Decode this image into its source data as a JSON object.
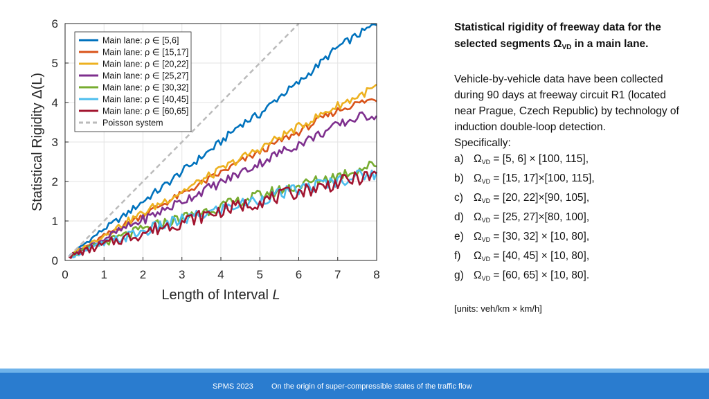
{
  "chart_data": {
    "type": "line",
    "title": "",
    "xlabel": "Length of Interval",
    "xlabel_var": "L",
    "ylabel": "Statistical Rigidity Δ(L)",
    "xlim": [
      0,
      8
    ],
    "ylim": [
      0,
      6
    ],
    "xticks": [
      0,
      1,
      2,
      3,
      4,
      5,
      6,
      7,
      8
    ],
    "yticks": [
      0,
      1,
      2,
      3,
      4,
      5,
      6
    ],
    "grid": true,
    "legend_position": "top-left",
    "x": [
      0.1,
      0.5,
      1,
      1.5,
      2,
      2.5,
      3,
      3.5,
      4,
      4.5,
      5,
      5.5,
      6,
      6.5,
      7,
      7.5,
      8
    ],
    "series": [
      {
        "name": "Main lane: ρ ∈ [5,6]",
        "color": "#0072BD",
        "style": "solid",
        "values": [
          0.1,
          0.42,
          0.8,
          1.12,
          1.5,
          1.85,
          2.25,
          2.62,
          3.0,
          3.45,
          3.7,
          4.15,
          4.5,
          4.95,
          5.4,
          5.7,
          6.0
        ]
      },
      {
        "name": "Main lane: ρ ∈ [15,17]",
        "color": "#D95319",
        "style": "solid",
        "values": [
          0.1,
          0.33,
          0.62,
          0.9,
          1.15,
          1.42,
          1.68,
          1.95,
          2.22,
          2.5,
          2.75,
          3.02,
          3.25,
          3.55,
          3.8,
          3.98,
          4.1
        ]
      },
      {
        "name": "Main lane: ρ ∈ [20,22]",
        "color": "#EDB120",
        "style": "solid",
        "values": [
          0.1,
          0.34,
          0.64,
          0.93,
          1.2,
          1.48,
          1.75,
          2.02,
          2.3,
          2.58,
          2.83,
          3.12,
          3.38,
          3.65,
          3.92,
          4.15,
          4.4
        ]
      },
      {
        "name": "Main lane: ρ ∈ [25,27]",
        "color": "#7E2F8E",
        "style": "solid",
        "values": [
          0.1,
          0.3,
          0.55,
          0.8,
          1.03,
          1.26,
          1.5,
          1.75,
          1.97,
          2.22,
          2.47,
          2.72,
          2.95,
          3.18,
          3.42,
          3.62,
          3.7
        ]
      },
      {
        "name": "Main lane: ρ ∈ [30,32]",
        "color": "#77AC30",
        "style": "solid",
        "values": [
          0.1,
          0.25,
          0.45,
          0.62,
          0.78,
          0.93,
          1.08,
          1.22,
          1.37,
          1.5,
          1.65,
          1.78,
          1.9,
          2.03,
          2.15,
          2.3,
          2.45
        ]
      },
      {
        "name": "Main lane: ρ ∈ [40,45]",
        "color": "#4DBEEE",
        "style": "solid",
        "values": [
          0.1,
          0.24,
          0.42,
          0.58,
          0.73,
          0.88,
          1.02,
          1.15,
          1.3,
          1.42,
          1.55,
          1.68,
          1.8,
          1.92,
          2.02,
          2.15,
          2.2
        ]
      },
      {
        "name": "Main lane: ρ ∈ [60,65]",
        "color": "#A2142F",
        "style": "solid",
        "values": [
          0.1,
          0.23,
          0.4,
          0.56,
          0.7,
          0.85,
          0.98,
          1.12,
          1.26,
          1.38,
          1.5,
          1.62,
          1.75,
          1.85,
          1.96,
          2.08,
          2.15
        ]
      },
      {
        "name": "Poisson system",
        "color": "#BBBBBB",
        "style": "dashed",
        "values": [
          0.1,
          0.5,
          1.0,
          1.5,
          2.0,
          2.5,
          3.0,
          3.5,
          4.0,
          4.5,
          5.0,
          5.5,
          6.0,
          null,
          null,
          null,
          null
        ]
      }
    ]
  },
  "side": {
    "title_pre": "Statistical rigidity of freeway data for the selected segments Ω",
    "title_sub": "VD",
    "title_post": " in a main lane.",
    "para": "Vehicle-by-vehicle data have been collected during 90 days at freeway circuit R1 (located near Prague, Czech Republic) by technology of induction double-loop detection.",
    "specifically": "Specifically:",
    "items": [
      {
        "letter": "a)",
        "omega": "Ω",
        "sub": "VD",
        "text": " = [5, 6] × [100, 115],"
      },
      {
        "letter": "b)",
        "omega": "Ω",
        "sub": "VD",
        "text": " = [15, 17]×[100, 115],"
      },
      {
        "letter": "c)",
        "omega": "Ω",
        "sub": "VD",
        "text": " = [20, 22]×[90, 105],"
      },
      {
        "letter": "d)",
        "omega": "Ω",
        "sub": "VD",
        "text": " = [25, 27]×[80, 100],"
      },
      {
        "letter": "e)",
        "omega": "Ω",
        "sub": "VD",
        "text": " = [30, 32] × [10, 80],"
      },
      {
        "letter": "f)",
        "omega": "Ω",
        "sub": "VD",
        "text": " = [40, 45] × [10, 80],"
      },
      {
        "letter": "g)",
        "omega": "Ω",
        "sub": "VD",
        "text": " = [60, 65] × [10, 80]."
      }
    ],
    "units": "[units: veh/km × km/h]"
  },
  "footer": {
    "left": "SPMS 2023",
    "right": "On the origin of super-compressible states of the traffic flow",
    "bg_color": "#2a7ccf",
    "accent_color": "#6fb3ea"
  }
}
